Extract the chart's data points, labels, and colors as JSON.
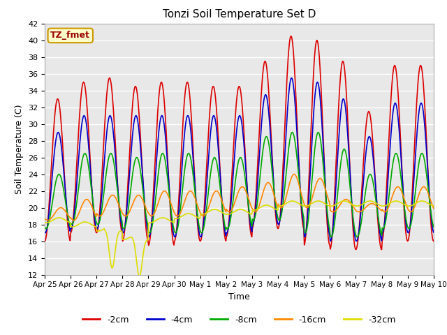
{
  "title": "Tonzi Soil Temperature Set D",
  "xlabel": "Time",
  "ylabel": "Soil Temperature (C)",
  "ylim": [
    12,
    42
  ],
  "yticks": [
    12,
    14,
    16,
    18,
    20,
    22,
    24,
    26,
    28,
    30,
    32,
    34,
    36,
    38,
    40,
    42
  ],
  "plot_bg_color": "#e8e8e8",
  "grid_color": "#ffffff",
  "label_box_color": "#ffffcc",
  "label_box_edge": "#cc9900",
  "label_text": "TZ_fmet",
  "label_text_color": "#990000",
  "series": [
    {
      "label": "-2cm",
      "color": "#dd0000",
      "lw": 1.2
    },
    {
      "label": "-4cm",
      "color": "#0000cc",
      "lw": 1.2
    },
    {
      "label": "-8cm",
      "color": "#00aa00",
      "lw": 1.2
    },
    {
      "label": "-16cm",
      "color": "#ff8800",
      "lw": 1.2
    },
    {
      "label": "-32cm",
      "color": "#dddd00",
      "lw": 1.2
    }
  ],
  "x_tick_labels": [
    "Apr 25",
    "Apr 26",
    "Apr 27",
    "Apr 28",
    "Apr 29",
    "Apr 30",
    "May 1",
    "May 2",
    "May 3",
    "May 4",
    "May 5",
    "May 6",
    "May 7",
    "May 8",
    "May 9",
    "May 10"
  ],
  "n_days": 15,
  "pts_per_day": 48,
  "figsize": [
    6.4,
    4.8
  ],
  "dpi": 100
}
